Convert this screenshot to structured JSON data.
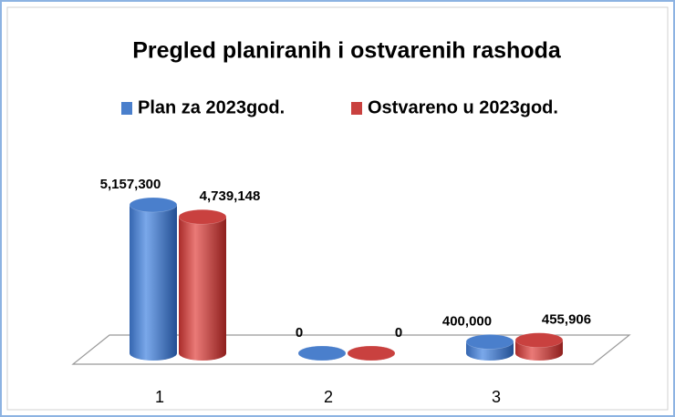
{
  "chart_data": {
    "type": "bar",
    "title": "Pregled planiranih i ostvarenih rashoda",
    "categories": [
      "1",
      "2",
      "3"
    ],
    "series": [
      {
        "name": "Plan za 2023god.",
        "color": "#4a7fcc",
        "values": [
          5157300,
          0,
          400000
        ],
        "value_labels": [
          "5,157,300",
          "0",
          "400,000"
        ]
      },
      {
        "name": "Ostvareno u 2023god.",
        "color": "#c9413f",
        "values": [
          4739148,
          0,
          455906
        ],
        "value_labels": [
          "4,739,148",
          "0",
          "455,906"
        ]
      }
    ],
    "legend": "top"
  }
}
